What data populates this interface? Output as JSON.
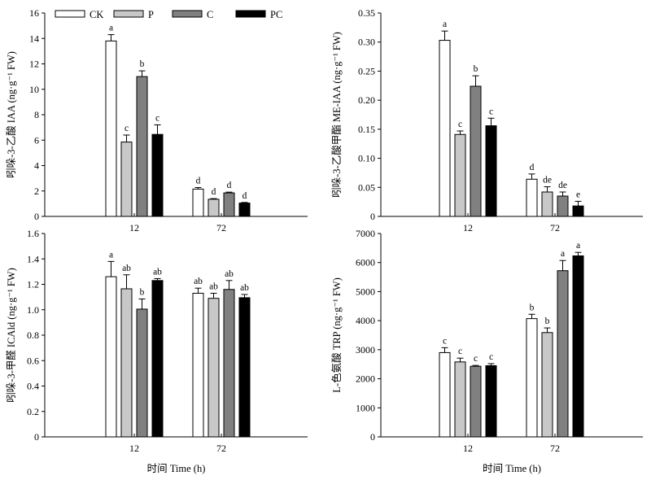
{
  "legend": [
    {
      "label": "CK",
      "color": "#ffffff"
    },
    {
      "label": "P",
      "color": "#c8c8c8"
    },
    {
      "label": "C",
      "color": "#808080"
    },
    {
      "label": "PC",
      "color": "#000000"
    }
  ],
  "chart_data": [
    {
      "type": "bar",
      "categories": [
        "12",
        "72"
      ],
      "ylabel": "吲哚-3-乙酸 IAA (ng·g⁻¹ FW)",
      "xlabel": "",
      "ylim": [
        0,
        16
      ],
      "yticks": [
        "0",
        "2",
        "4",
        "6",
        "8",
        "10",
        "12",
        "14",
        "16"
      ],
      "series": [
        {
          "name": "CK",
          "values": [
            13.8,
            2.15
          ],
          "errors": [
            0.5,
            0.12
          ],
          "labels": [
            "a",
            "d"
          ]
        },
        {
          "name": "P",
          "values": [
            5.85,
            1.35
          ],
          "errors": [
            0.55,
            0.05
          ],
          "labels": [
            "c",
            "d"
          ]
        },
        {
          "name": "C",
          "values": [
            11.0,
            1.85
          ],
          "errors": [
            0.45,
            0.06
          ],
          "labels": [
            "b",
            "d"
          ]
        },
        {
          "name": "PC",
          "values": [
            6.45,
            1.05
          ],
          "errors": [
            0.75,
            0.05
          ],
          "labels": [
            "c",
            "d"
          ]
        }
      ]
    },
    {
      "type": "bar",
      "categories": [
        "12",
        "72"
      ],
      "ylabel": "吲哚-3-乙酸甲酯 ME-IAA (ng·g⁻¹ FW)",
      "xlabel": "",
      "ylim": [
        0,
        0.35
      ],
      "yticks": [
        "0",
        "0.05",
        "0.10",
        "0.15",
        "0.20",
        "0.25",
        "0.30",
        "0.35"
      ],
      "series": [
        {
          "name": "CK",
          "values": [
            0.303,
            0.064
          ],
          "errors": [
            0.016,
            0.009
          ],
          "labels": [
            "a",
            "d"
          ]
        },
        {
          "name": "P",
          "values": [
            0.141,
            0.042
          ],
          "errors": [
            0.006,
            0.009
          ],
          "labels": [
            "c",
            "de"
          ]
        },
        {
          "name": "C",
          "values": [
            0.224,
            0.035
          ],
          "errors": [
            0.018,
            0.007
          ],
          "labels": [
            "b",
            "de"
          ]
        },
        {
          "name": "PC",
          "values": [
            0.156,
            0.018
          ],
          "errors": [
            0.013,
            0.008
          ],
          "labels": [
            "c",
            "e"
          ]
        }
      ]
    },
    {
      "type": "bar",
      "categories": [
        "12",
        "72"
      ],
      "ylabel": "吲哚-3-甲醛 ICAld (ng·g⁻¹ FW)",
      "xlabel": "时间 Time (h)",
      "ylim": [
        0,
        1.6
      ],
      "yticks": [
        "0",
        "0.2",
        "0.4",
        "0.6",
        "0.8",
        "1.0",
        "1.2",
        "1.4",
        "1.6"
      ],
      "series": [
        {
          "name": "CK",
          "values": [
            1.26,
            1.13
          ],
          "errors": [
            0.12,
            0.04
          ],
          "labels": [
            "a",
            "ab"
          ]
        },
        {
          "name": "P",
          "values": [
            1.165,
            1.09
          ],
          "errors": [
            0.11,
            0.04
          ],
          "labels": [
            "ab",
            "ab"
          ]
        },
        {
          "name": "C",
          "values": [
            1.005,
            1.16
          ],
          "errors": [
            0.08,
            0.07
          ],
          "labels": [
            "b",
            "ab"
          ]
        },
        {
          "name": "PC",
          "values": [
            1.23,
            1.095
          ],
          "errors": [
            0.015,
            0.025
          ],
          "labels": [
            "ab",
            "ab"
          ]
        }
      ]
    },
    {
      "type": "bar",
      "categories": [
        "12",
        "72"
      ],
      "ylabel": "L-色氨酸 TRP (ng·g⁻¹ FW)",
      "xlabel": "时间 Time (h)",
      "ylim": [
        0,
        7000
      ],
      "yticks": [
        "0",
        "1000",
        "2000",
        "3000",
        "4000",
        "5000",
        "6000",
        "7000"
      ],
      "series": [
        {
          "name": "CK",
          "values": [
            2900,
            4070
          ],
          "errors": [
            170,
            150
          ],
          "labels": [
            "c",
            "b"
          ]
        },
        {
          "name": "P",
          "values": [
            2580,
            3590
          ],
          "errors": [
            130,
            160
          ],
          "labels": [
            "c",
            "b"
          ]
        },
        {
          "name": "C",
          "values": [
            2430,
            5720
          ],
          "errors": [
            30,
            350
          ],
          "labels": [
            "c",
            "a"
          ]
        },
        {
          "name": "PC",
          "values": [
            2450,
            6230
          ],
          "errors": [
            70,
            120
          ],
          "labels": [
            "c",
            "a"
          ]
        }
      ]
    }
  ]
}
